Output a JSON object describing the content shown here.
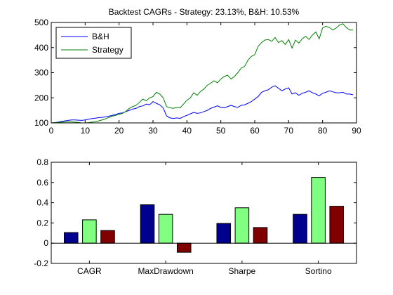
{
  "chart_data": [
    {
      "type": "line",
      "title": "Backtest CAGRs - Strategy: 23.13%, B&H: 10.53%",
      "xlabel": "",
      "ylabel": "",
      "xlim": [
        0,
        90
      ],
      "ylim": [
        100,
        500
      ],
      "xticks": [
        0,
        10,
        20,
        30,
        40,
        50,
        60,
        70,
        80,
        90
      ],
      "yticks": [
        100,
        200,
        300,
        400,
        500
      ],
      "legend_position": "top-left",
      "grid": false,
      "series": [
        {
          "name": "B&H",
          "color": "#0000ff",
          "x": [
            0,
            1,
            2,
            3,
            4,
            5,
            6,
            7,
            8,
            9,
            10,
            11,
            12,
            13,
            14,
            15,
            16,
            17,
            18,
            19,
            20,
            21,
            22,
            23,
            24,
            25,
            26,
            27,
            28,
            29,
            30,
            31,
            32,
            33,
            34,
            35,
            36,
            37,
            38,
            39,
            40,
            41,
            42,
            43,
            44,
            45,
            46,
            47,
            48,
            49,
            50,
            51,
            52,
            53,
            54,
            55,
            56,
            57,
            58,
            59,
            60,
            61,
            62,
            63,
            64,
            65,
            66,
            67,
            68,
            69,
            70,
            71,
            72,
            73,
            74,
            75,
            76,
            77,
            78,
            79,
            80,
            81,
            82,
            83,
            84,
            85,
            86,
            87,
            88,
            89
          ],
          "y": [
            100,
            101,
            103,
            106,
            108,
            110,
            112,
            112,
            111,
            110,
            112,
            115,
            117,
            119,
            121,
            122,
            124,
            127,
            130,
            134,
            138,
            140,
            145,
            150,
            155,
            158,
            165,
            168,
            175,
            172,
            185,
            178,
            172,
            160,
            128,
            120,
            118,
            120,
            118,
            125,
            130,
            136,
            142,
            138,
            140,
            145,
            150,
            158,
            163,
            168,
            162,
            160,
            165,
            170,
            165,
            162,
            170,
            172,
            178,
            185,
            195,
            205,
            222,
            228,
            232,
            242,
            248,
            238,
            228,
            235,
            240,
            215,
            220,
            210,
            218,
            222,
            228,
            220,
            215,
            208,
            218,
            222,
            228,
            224,
            220,
            220,
            222,
            215,
            215,
            212
          ]
        },
        {
          "name": "Strategy",
          "color": "#008000",
          "x": [
            0,
            1,
            2,
            3,
            4,
            5,
            6,
            7,
            8,
            9,
            10,
            11,
            12,
            13,
            14,
            15,
            16,
            17,
            18,
            19,
            20,
            21,
            22,
            23,
            24,
            25,
            26,
            27,
            28,
            29,
            30,
            31,
            32,
            33,
            34,
            35,
            36,
            37,
            38,
            39,
            40,
            41,
            42,
            43,
            44,
            45,
            46,
            47,
            48,
            49,
            50,
            51,
            52,
            53,
            54,
            55,
            56,
            57,
            58,
            59,
            60,
            61,
            62,
            63,
            64,
            65,
            66,
            67,
            68,
            69,
            70,
            71,
            72,
            73,
            74,
            75,
            76,
            77,
            78,
            79,
            80,
            81,
            82,
            83,
            84,
            85,
            86,
            87,
            88,
            89
          ],
          "y": [
            100,
            101,
            102,
            103,
            104,
            104,
            104,
            103,
            102,
            100,
            100,
            101,
            103,
            105,
            108,
            112,
            116,
            122,
            127,
            130,
            134,
            138,
            146,
            158,
            165,
            170,
            182,
            195,
            188,
            200,
            205,
            222,
            215,
            200,
            165,
            160,
            158,
            162,
            160,
            175,
            190,
            200,
            220,
            210,
            225,
            235,
            250,
            258,
            268,
            260,
            275,
            285,
            290,
            275,
            285,
            300,
            318,
            325,
            350,
            365,
            372,
            405,
            420,
            430,
            432,
            425,
            440,
            420,
            428,
            412,
            432,
            398,
            430,
            418,
            435,
            445,
            432,
            450,
            462,
            435,
            478,
            485,
            480,
            470,
            478,
            490,
            495,
            480,
            470,
            470
          ]
        }
      ]
    },
    {
      "type": "bar",
      "title": "",
      "xlabel": "",
      "ylabel": "",
      "categories": [
        "CAGR",
        "MaxDrawdown",
        "Sharpe",
        "Sortino"
      ],
      "ylim": [
        -0.2,
        0.8
      ],
      "yticks": [
        -0.2,
        0,
        0.2,
        0.4,
        0.6,
        0.8
      ],
      "ytick_labels": [
        "-0.2",
        "0",
        "0.2",
        "0.4",
        "0.6",
        "0.8"
      ],
      "grid": false,
      "series": [
        {
          "color": "#00008f",
          "values": [
            0.105,
            0.38,
            0.195,
            0.285
          ]
        },
        {
          "color": "#80ff80",
          "values": [
            0.231,
            0.285,
            0.35,
            0.65
          ]
        },
        {
          "color": "#800000",
          "values": [
            0.125,
            -0.09,
            0.155,
            0.365
          ]
        }
      ]
    }
  ]
}
